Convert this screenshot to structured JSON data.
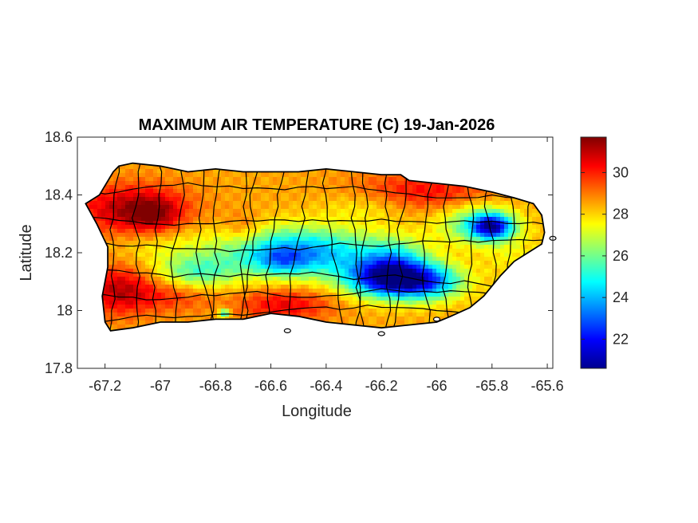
{
  "chart_data": {
    "type": "heatmap",
    "title": "MAXIMUM AIR TEMPERATURE (C) 19-Jan-2026",
    "xlabel": "Longitude",
    "ylabel": "Latitude",
    "xlim": [
      -67.3,
      -65.58
    ],
    "ylim": [
      17.8,
      18.6
    ],
    "xticks": [
      -67.2,
      -67,
      -66.8,
      -66.6,
      -66.4,
      -66.2,
      -66,
      -65.8,
      -65.6
    ],
    "xtick_labels": [
      "-67.2",
      "-67",
      "-66.8",
      "-66.6",
      "-66.4",
      "-66.2",
      "-66",
      "-65.8",
      "-65.6"
    ],
    "yticks": [
      17.8,
      18,
      18.2,
      18.4,
      18.6
    ],
    "ytick_labels": [
      "17.8",
      "18",
      "18.2",
      "18.4",
      "18.6"
    ],
    "colorbar": {
      "colormap": "jet",
      "range": [
        20.6,
        31.7
      ],
      "ticks": [
        22,
        24,
        26,
        28,
        30
      ],
      "tick_labels": [
        "22",
        "24",
        "26",
        "28",
        "30"
      ],
      "label": ""
    },
    "grid": false,
    "region_outline": [
      [
        -67.27,
        18.37
      ],
      [
        -67.22,
        18.4
      ],
      [
        -67.17,
        18.48
      ],
      [
        -67.15,
        18.5
      ],
      [
        -67.1,
        18.51
      ],
      [
        -67.0,
        18.5
      ],
      [
        -66.9,
        18.48
      ],
      [
        -66.8,
        18.49
      ],
      [
        -66.7,
        18.48
      ],
      [
        -66.6,
        18.48
      ],
      [
        -66.5,
        18.48
      ],
      [
        -66.4,
        18.49
      ],
      [
        -66.3,
        18.48
      ],
      [
        -66.2,
        18.47
      ],
      [
        -66.13,
        18.47
      ],
      [
        -66.1,
        18.45
      ],
      [
        -66.0,
        18.44
      ],
      [
        -65.9,
        18.43
      ],
      [
        -65.8,
        18.41
      ],
      [
        -65.72,
        18.39
      ],
      [
        -65.65,
        18.37
      ],
      [
        -65.62,
        18.33
      ],
      [
        -65.61,
        18.27
      ],
      [
        -65.62,
        18.23
      ],
      [
        -65.67,
        18.2
      ],
      [
        -65.72,
        18.17
      ],
      [
        -65.77,
        18.12
      ],
      [
        -65.83,
        18.05
      ],
      [
        -65.88,
        18.01
      ],
      [
        -65.95,
        17.98
      ],
      [
        -66.0,
        17.96
      ],
      [
        -66.1,
        17.95
      ],
      [
        -66.2,
        17.94
      ],
      [
        -66.3,
        17.95
      ],
      [
        -66.4,
        17.96
      ],
      [
        -66.5,
        17.98
      ],
      [
        -66.6,
        17.99
      ],
      [
        -66.7,
        17.97
      ],
      [
        -66.8,
        17.97
      ],
      [
        -66.9,
        17.96
      ],
      [
        -67.0,
        17.96
      ],
      [
        -67.1,
        17.94
      ],
      [
        -67.18,
        17.93
      ],
      [
        -67.2,
        17.96
      ],
      [
        -67.21,
        18.05
      ],
      [
        -67.19,
        18.15
      ],
      [
        -67.19,
        18.22
      ],
      [
        -67.23,
        18.3
      ],
      [
        -67.27,
        18.37
      ]
    ],
    "value_field": {
      "base": 28.5,
      "features": [
        {
          "x": -67.1,
          "y": 18.35,
          "amp": 2.8,
          "sx": 0.14,
          "sy": 0.06
        },
        {
          "x": -67.02,
          "y": 18.33,
          "amp": 1.5,
          "sx": 0.06,
          "sy": 0.04
        },
        {
          "x": -67.15,
          "y": 18.07,
          "amp": 2.5,
          "sx": 0.09,
          "sy": 0.06
        },
        {
          "x": -66.55,
          "y": 18.02,
          "amp": 2.0,
          "sx": 0.12,
          "sy": 0.04
        },
        {
          "x": -66.95,
          "y": 18.05,
          "amp": 1.2,
          "sx": 0.1,
          "sy": 0.04
        },
        {
          "x": -66.05,
          "y": 18.41,
          "amp": 1.8,
          "sx": 0.18,
          "sy": 0.05
        },
        {
          "x": -66.7,
          "y": 18.28,
          "amp": 1.0,
          "sx": 0.05,
          "sy": 0.04
        },
        {
          "x": -66.5,
          "y": 18.2,
          "amp": -5.0,
          "sx": 0.2,
          "sy": 0.06
        },
        {
          "x": -66.56,
          "y": 18.17,
          "amp": -1.5,
          "sx": 0.06,
          "sy": 0.03
        },
        {
          "x": -66.2,
          "y": 18.11,
          "amp": -5.5,
          "sx": 0.1,
          "sy": 0.045
        },
        {
          "x": -66.05,
          "y": 18.1,
          "amp": -5.5,
          "sx": 0.1,
          "sy": 0.045
        },
        {
          "x": -66.15,
          "y": 18.18,
          "amp": -2.5,
          "sx": 0.08,
          "sy": 0.05
        },
        {
          "x": -65.8,
          "y": 18.29,
          "amp": -5.5,
          "sx": 0.05,
          "sy": 0.03
        },
        {
          "x": -65.85,
          "y": 18.3,
          "amp": -3.0,
          "sx": 0.1,
          "sy": 0.05
        },
        {
          "x": -66.25,
          "y": 18.36,
          "amp": -1.0,
          "sx": 0.12,
          "sy": 0.04
        },
        {
          "x": -66.87,
          "y": 18.13,
          "amp": -2.5,
          "sx": 0.1,
          "sy": 0.04
        },
        {
          "x": -66.77,
          "y": 17.99,
          "amp": -3.5,
          "sx": 0.015,
          "sy": 0.012
        },
        {
          "x": -67.0,
          "y": 18.22,
          "amp": -0.8,
          "sx": 0.12,
          "sy": 0.05
        },
        {
          "x": -65.72,
          "y": 18.18,
          "amp": -0.8,
          "sx": 0.08,
          "sy": 0.06
        }
      ]
    },
    "islets": [
      [
        -66.54,
        17.93
      ],
      [
        -66.2,
        17.92
      ],
      [
        -66.0,
        17.97
      ],
      [
        -65.58,
        18.25
      ]
    ]
  }
}
